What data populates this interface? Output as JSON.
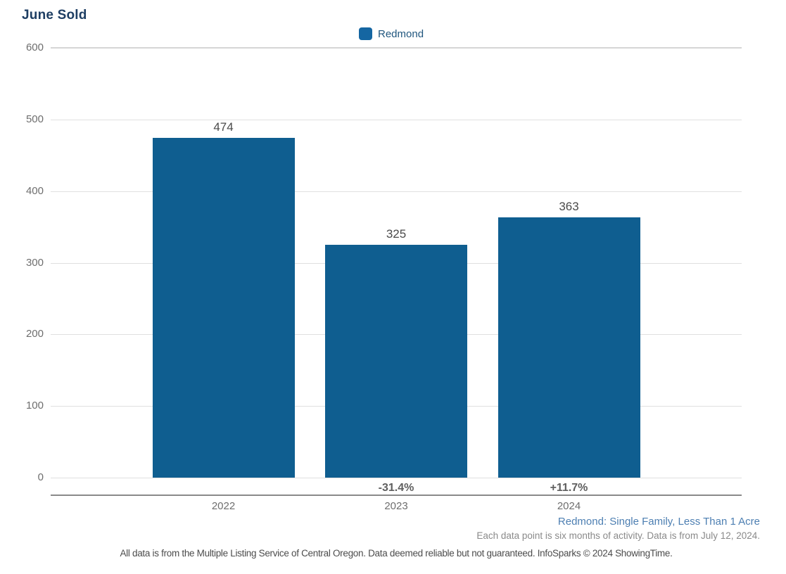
{
  "title": "June Sold",
  "legend": {
    "label": "Redmond",
    "swatch_color": "#1566a2"
  },
  "chart_data": {
    "type": "bar",
    "title": "June Sold",
    "categories": [
      "2022",
      "2023",
      "2024"
    ],
    "series": [
      {
        "name": "Redmond",
        "values": [
          474,
          325,
          363
        ]
      }
    ],
    "pct_changes": [
      "",
      "-31.4%",
      "+11.7%"
    ],
    "ylim": [
      0,
      600
    ],
    "yticks": [
      0,
      100,
      200,
      300,
      400,
      500,
      600
    ],
    "grid": true,
    "legend_position": "top-center",
    "bar_color": "#0f5e90",
    "xlabel": "",
    "ylabel": ""
  },
  "footnotes": {
    "segment": "Redmond: Single Family, Less Than 1 Acre",
    "activity": "Each data point is six months of activity. Data is from July 12, 2024.",
    "disclaimer": "All data is from the Multiple Listing Service of Central Oregon. Data deemed reliable but not guaranteed. InfoSparks © 2024 ShowingTime."
  },
  "colors": {
    "title": "#1e3e63",
    "bar": "#0f5e90",
    "legend_text": "#20567e",
    "gridline": "#e0e0e0",
    "axis_line": "#8a8a8a",
    "tick_text": "#6e6e6e",
    "value_text": "#4a4a4a",
    "pct_text": "#5f5f5f",
    "segment_text": "#4d7fb2",
    "footnote_text": "#8a8a8a",
    "disclaimer_text": "#4c4c4c"
  }
}
